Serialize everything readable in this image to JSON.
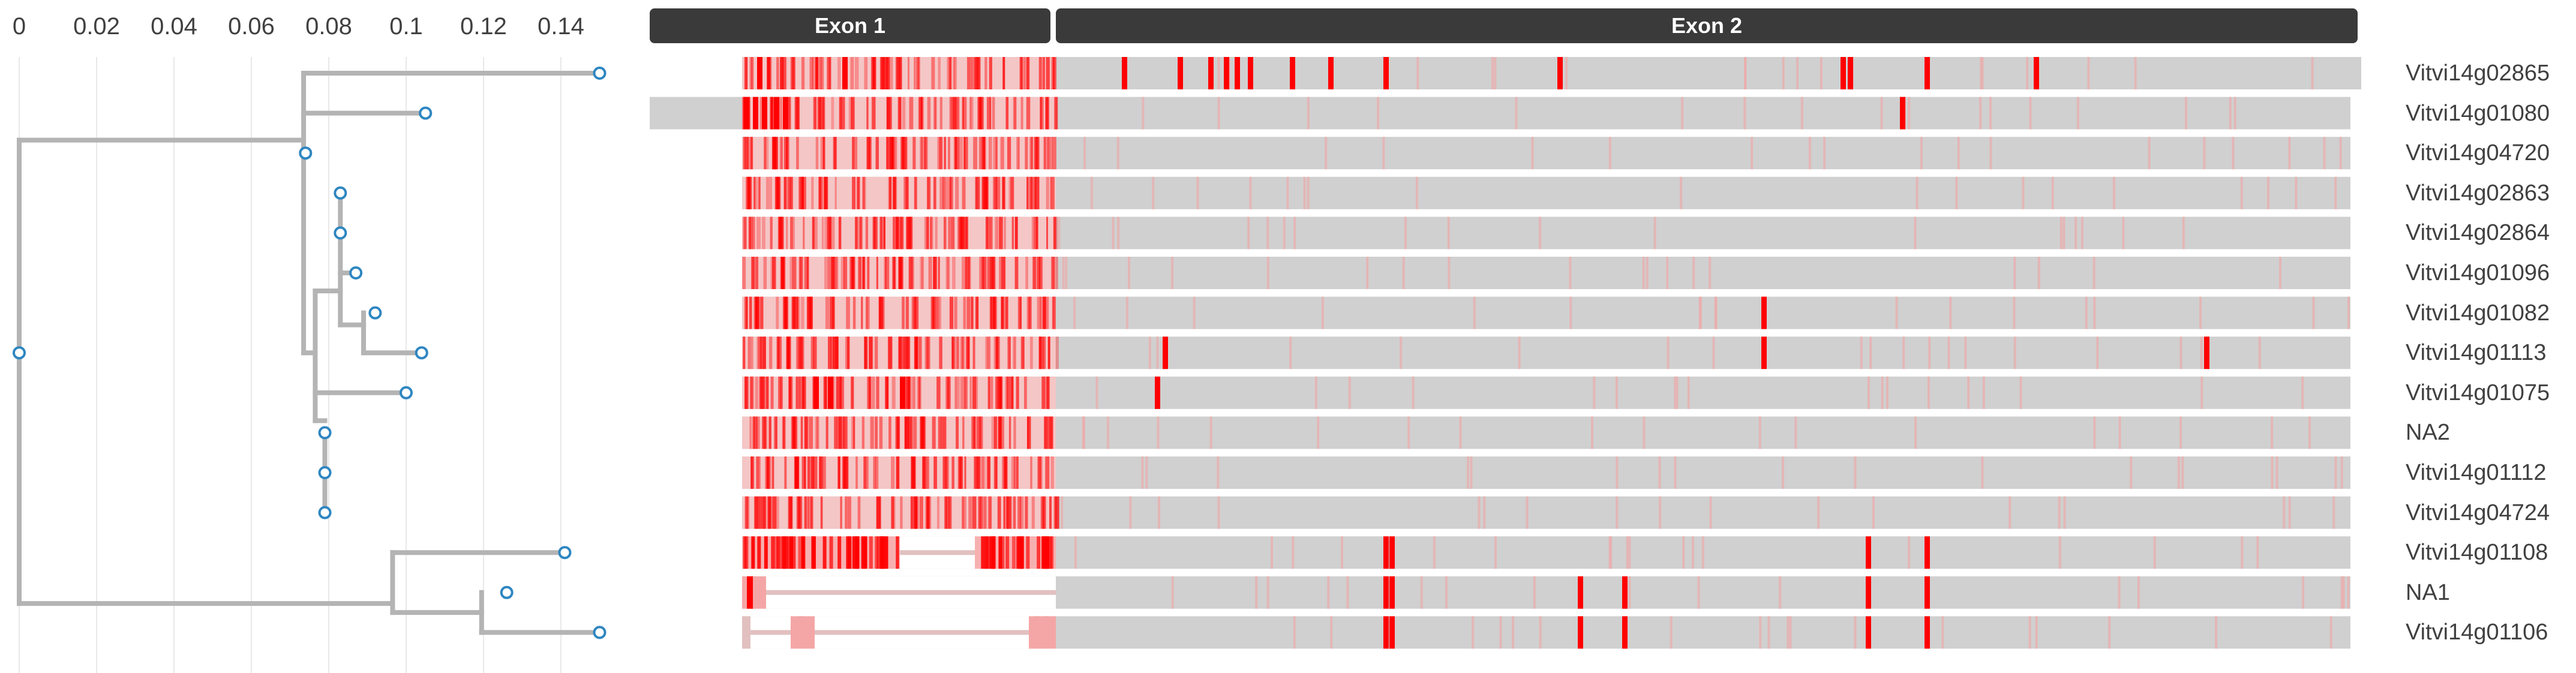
{
  "axis": {
    "ticks": [
      {
        "value": 0,
        "label": "0"
      },
      {
        "value": 0.02,
        "label": "0.02"
      },
      {
        "value": 0.04,
        "label": "0.04"
      },
      {
        "value": 0.06,
        "label": "0.06"
      },
      {
        "value": 0.08,
        "label": "0.08"
      },
      {
        "value": 0.1,
        "label": "0.1"
      },
      {
        "value": 0.12,
        "label": "0.12"
      },
      {
        "value": 0.14,
        "label": "0.14"
      }
    ]
  },
  "exons": [
    {
      "label": "Exon 1"
    },
    {
      "label": "Exon 2"
    }
  ],
  "genes": [
    {
      "name": "Vitvi14g02865"
    },
    {
      "name": "Vitvi14g01080"
    },
    {
      "name": "Vitvi14g04720"
    },
    {
      "name": "Vitvi14g02863"
    },
    {
      "name": "Vitvi14g02864"
    },
    {
      "name": "Vitvi14g01096"
    },
    {
      "name": "Vitvi14g01082"
    },
    {
      "name": "Vitvi14g01113"
    },
    {
      "name": "Vitvi14g01075"
    },
    {
      "name": "NA2"
    },
    {
      "name": "Vitvi14g01112"
    },
    {
      "name": "Vitvi14g04724"
    },
    {
      "name": "Vitvi14g01108"
    },
    {
      "name": "NA1"
    },
    {
      "name": "Vitvi14g01106"
    }
  ],
  "colors": {
    "branch": "#b4b4b4",
    "node_stroke": "#2e86c1",
    "gap": "#d0d0d0",
    "variant": "#ff0000",
    "exon_bar": "#3a3a3a"
  },
  "chart_data": {
    "type": "tree-with-alignment",
    "x_axis_range": [
      0,
      0.15
    ],
    "grid": "vertical",
    "tree": {
      "root": 0,
      "tips": [
        {
          "gene": "Vitvi14g02865",
          "dist": 0.15
        },
        {
          "gene": "Vitvi14g01080",
          "dist": 0.105
        },
        {
          "gene": "Vitvi14g04720",
          "dist": 0.074
        },
        {
          "gene": "Vitvi14g02863",
          "dist": 0.083
        },
        {
          "gene": "Vitvi14g02864",
          "dist": 0.083
        },
        {
          "gene": "Vitvi14g01096",
          "dist": 0.087
        },
        {
          "gene": "Vitvi14g01082",
          "dist": 0.092
        },
        {
          "gene": "Vitvi14g01113",
          "dist": 0.104
        },
        {
          "gene": "Vitvi14g01075",
          "dist": 0.1
        },
        {
          "gene": "NA2",
          "dist": 0.079
        },
        {
          "gene": "Vitvi14g01112",
          "dist": 0.079
        },
        {
          "gene": "Vitvi14g04724",
          "dist": 0.079
        },
        {
          "gene": "Vitvi14g01108",
          "dist": 0.141
        },
        {
          "gene": "NA1",
          "dist": 0.126
        },
        {
          "gene": "Vitvi14g01106",
          "dist": 0.15
        }
      ]
    }
  }
}
